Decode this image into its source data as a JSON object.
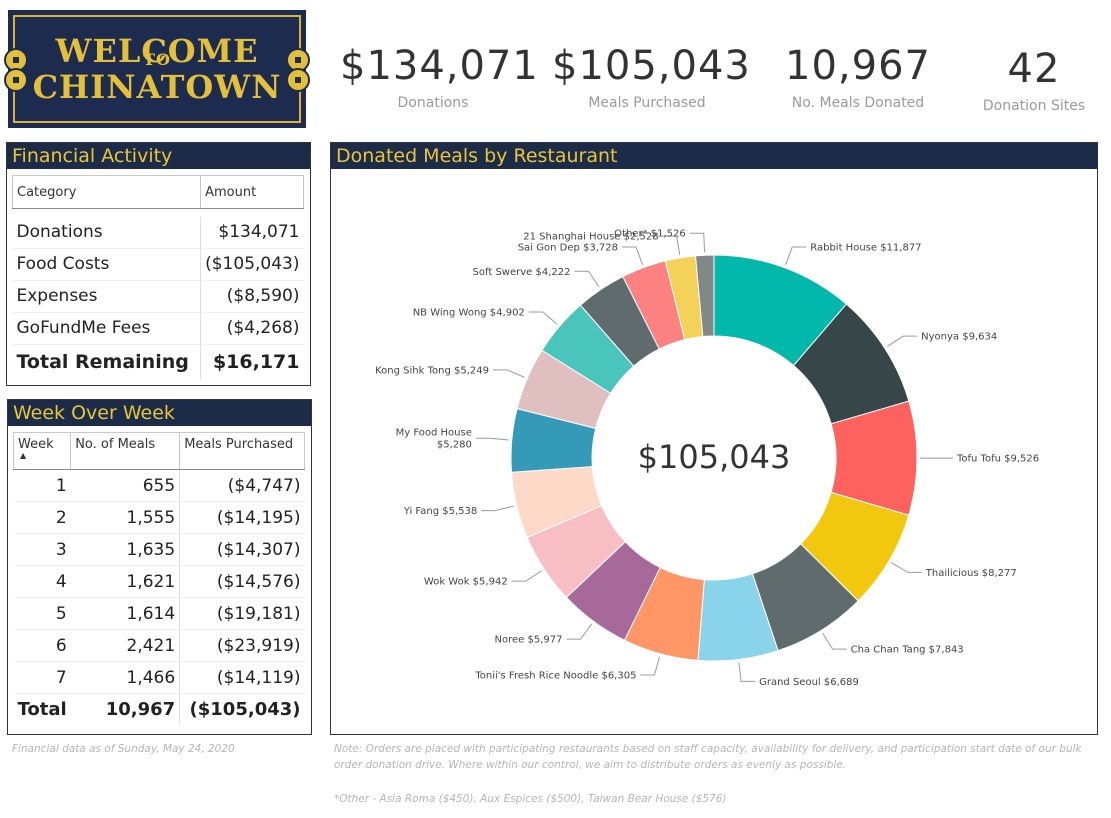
{
  "logo": {
    "line1": "WELCOME",
    "line2": "TO",
    "line3": "CHINATOWN"
  },
  "kpis": [
    {
      "value": "$134,071",
      "label": "Donations"
    },
    {
      "value": "$105,043",
      "label": "Meals Purchased"
    },
    {
      "value": "10,967",
      "label": "No. Meals Donated"
    },
    {
      "value": "42",
      "label": "Donation Sites"
    }
  ],
  "financial": {
    "title": "Financial Activity",
    "headers": [
      "Category",
      "Amount"
    ],
    "rows": [
      {
        "category": "Donations",
        "amount": "$134,071"
      },
      {
        "category": "Food Costs",
        "amount": "($105,043)"
      },
      {
        "category": "Expenses",
        "amount": "($8,590)"
      },
      {
        "category": "GoFundMe Fees",
        "amount": "($4,268)"
      }
    ],
    "total": {
      "category": "Total Remaining",
      "amount": "$16,171"
    }
  },
  "weekly": {
    "title": "Week Over Week",
    "headers": [
      "Week",
      "No. of Meals",
      "Meals Purchased"
    ],
    "rows": [
      {
        "week": "1",
        "meals": "655",
        "purchased": "($4,747)"
      },
      {
        "week": "2",
        "meals": "1,555",
        "purchased": "($14,195)"
      },
      {
        "week": "3",
        "meals": "1,635",
        "purchased": "($14,307)"
      },
      {
        "week": "4",
        "meals": "1,621",
        "purchased": "($14,576)"
      },
      {
        "week": "5",
        "meals": "1,614",
        "purchased": "($19,181)"
      },
      {
        "week": "6",
        "meals": "2,421",
        "purchased": "($23,919)"
      },
      {
        "week": "7",
        "meals": "1,466",
        "purchased": "($14,119)"
      }
    ],
    "total": {
      "week": "Total",
      "meals": "10,967",
      "purchased": "($105,043)"
    }
  },
  "footnotes": {
    "date": "Financial data as of  Sunday, May 24, 2020",
    "note": "Note: Orders are placed with participating restaurants based on staff capacity, availability for delivery, and participation start date of our bulk order donation drive. Where within our control, we aim to distribute orders as evenly as possible.",
    "other": "*Other - Asia Roma ($450), Aux Espices ($500), Taiwan Bear House ($576)"
  },
  "chart_data": {
    "type": "pie",
    "title": "Donated Meals by Restaurant",
    "center_label": "$105,043",
    "slices": [
      {
        "name": "Rabbit House",
        "value": 11877,
        "label": "Rabbit House $11,877",
        "color": "#01b8aa"
      },
      {
        "name": "Nyonya",
        "value": 9634,
        "label": "Nyonya $9,634",
        "color": "#374649"
      },
      {
        "name": "Tofu Tofu",
        "value": 9526,
        "label": "Tofu Tofu $9,526",
        "color": "#fd625e"
      },
      {
        "name": "Thailicious",
        "value": 8277,
        "label": "Thailicious $8,277",
        "color": "#f2c80f"
      },
      {
        "name": "Cha Chan Tang",
        "value": 7843,
        "label": "Cha Chan Tang $7,843",
        "color": "#5f6b6d"
      },
      {
        "name": "Grand Seoul",
        "value": 6689,
        "label": "Grand Seoul $6,689",
        "color": "#8ad4eb"
      },
      {
        "name": "Tonii's Fresh Rice Noodle",
        "value": 6305,
        "label": "Tonii's Fresh Rice Noodle $6,305",
        "color": "#fe9666"
      },
      {
        "name": "Noree",
        "value": 5977,
        "label": "Noree $5,977",
        "color": "#a66999"
      },
      {
        "name": "Wok Wok",
        "value": 5942,
        "label": "Wok Wok $5,942",
        "color": "#f7bfc4"
      },
      {
        "name": "Yi Fang",
        "value": 5538,
        "label": "Yi Fang $5,538",
        "color": "#fdd9c8"
      },
      {
        "name": "My Food House",
        "value": 5280,
        "label": "My Food House $5,280",
        "label_lines": [
          "My Food House",
          "$5,280"
        ],
        "color": "#3599b8"
      },
      {
        "name": "Kong Sihk Tong",
        "value": 5249,
        "label": "Kong Sihk Tong $5,249",
        "color": "#dfbfbf"
      },
      {
        "name": "NB Wing Wong",
        "value": 4902,
        "label": "NB Wing Wong $4,902",
        "color": "#4ac5bb"
      },
      {
        "name": "Soft Swerve",
        "value": 4222,
        "label": "Soft Swerve $4,222",
        "color": "#5f6b6d"
      },
      {
        "name": "Sai Gon Dep",
        "value": 3728,
        "label": "Sai Gon Dep $3,728",
        "color": "#fb8281"
      },
      {
        "name": "21 Shanghai House",
        "value": 2528,
        "label": "21 Shanghai House $2,528",
        "color": "#f4d25a"
      },
      {
        "name": "Other*",
        "value": 1526,
        "label": "Other* $1,526",
        "color": "#7f898a"
      }
    ]
  }
}
